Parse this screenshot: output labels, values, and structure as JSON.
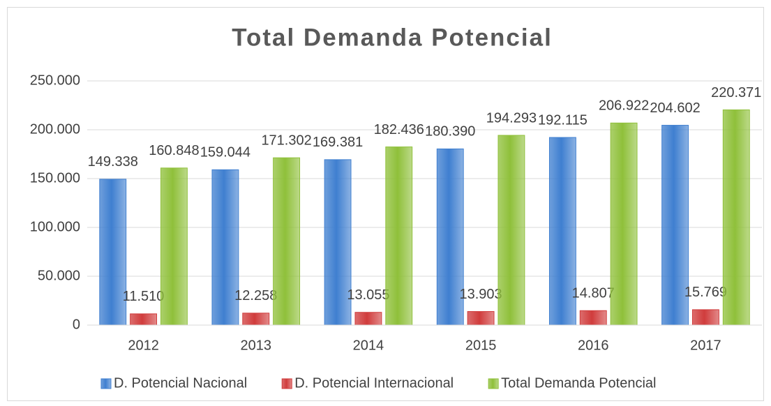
{
  "chart_data": {
    "type": "bar",
    "title": "Total Demanda Potencial",
    "categories": [
      "2012",
      "2013",
      "2014",
      "2015",
      "2016",
      "2017"
    ],
    "series": [
      {
        "name": "D. Potencial Nacional",
        "color": "#3f7fd0",
        "values": [
          149338,
          159044,
          169381,
          180390,
          192115,
          204602
        ],
        "value_labels": [
          "149.338",
          "159.044",
          "169.381",
          "180.390",
          "192.115",
          "204.602"
        ]
      },
      {
        "name": "D. Potencial Internacional",
        "color": "#d03c3c",
        "values": [
          11510,
          12258,
          13055,
          13903,
          14807,
          15769
        ],
        "value_labels": [
          "11.510",
          "12.258",
          "13.055",
          "13.903",
          "14.807",
          "15.769"
        ]
      },
      {
        "name": "Total Demanda Potencial",
        "color": "#8fc03a",
        "values": [
          160848,
          171302,
          182436,
          194293,
          206922,
          220371
        ],
        "value_labels": [
          "160.848",
          "171.302",
          "182.436",
          "194.293",
          "206.922",
          "220.371"
        ]
      }
    ],
    "ylim": [
      0,
      250000
    ],
    "yticks": [
      0,
      {
        "value": 50000,
        "label": "50.000"
      },
      {
        "value": 100000,
        "label": "100.000"
      },
      {
        "value": 150000,
        "label": "150.000"
      },
      {
        "value": 200000,
        "label": "200.000"
      },
      {
        "value": 250000,
        "label": "250.000"
      }
    ],
    "grid": true,
    "legend": "bottom"
  }
}
